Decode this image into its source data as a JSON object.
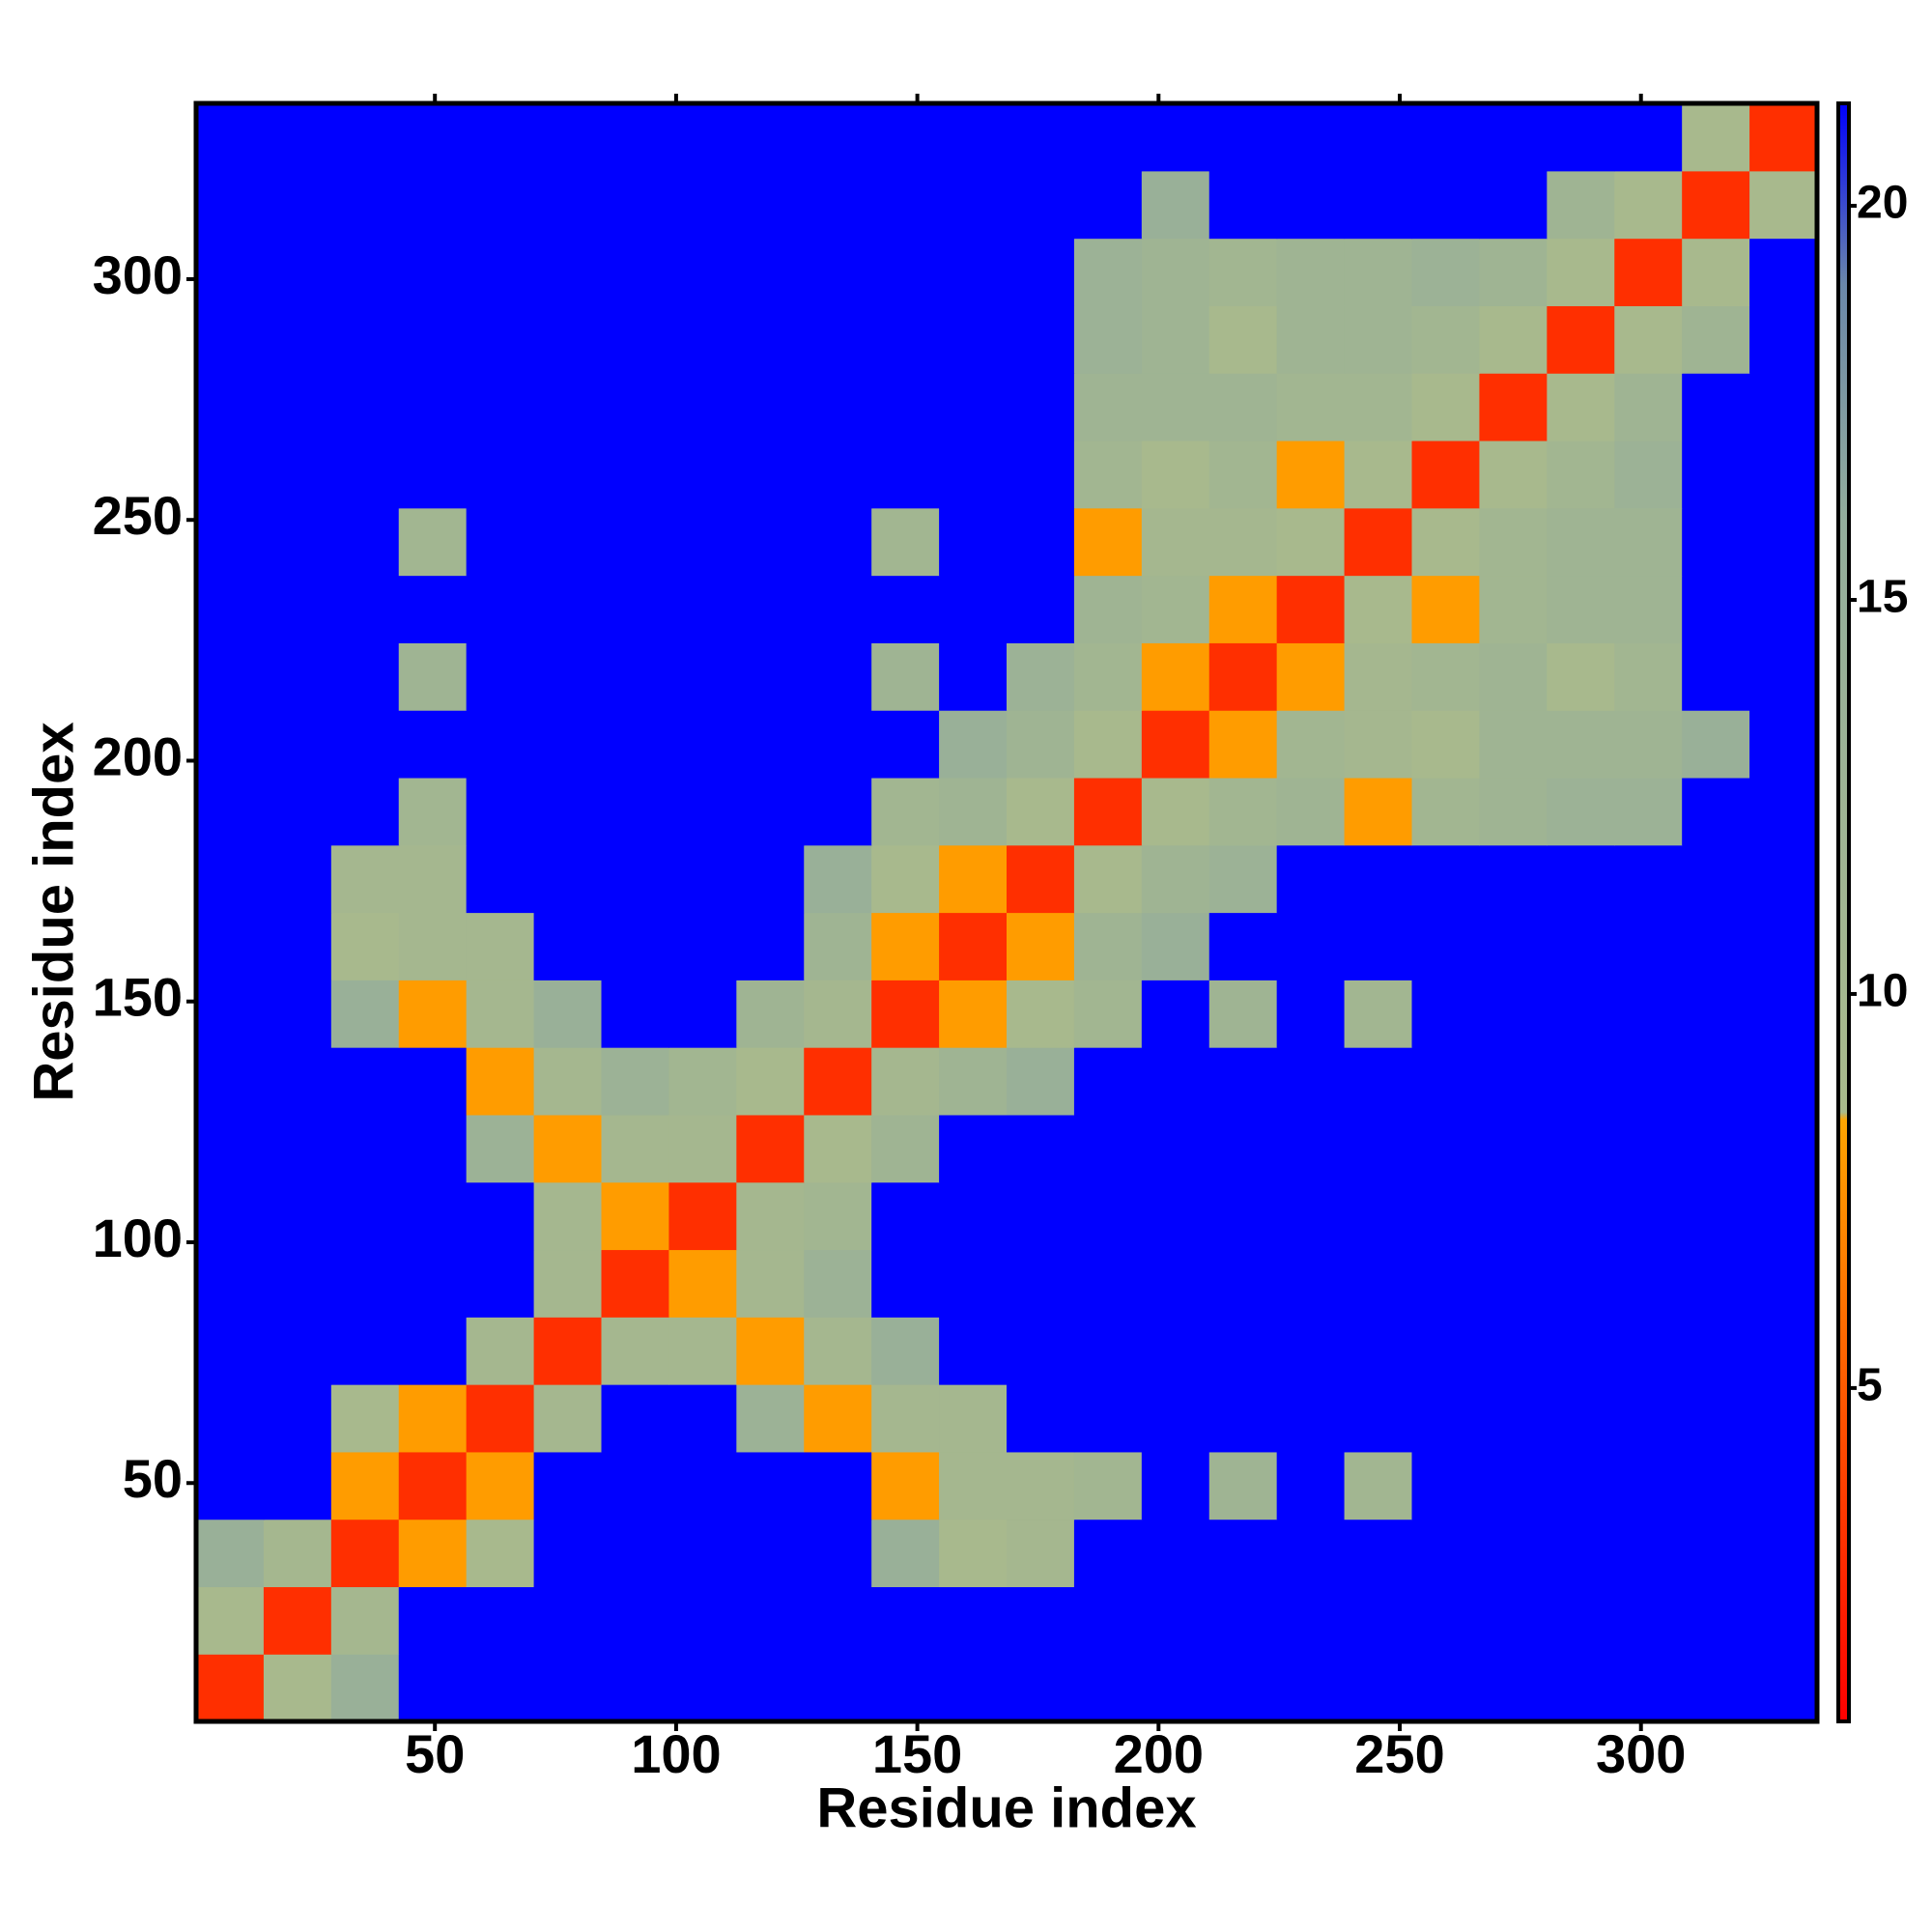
{
  "chart_data": {
    "type": "heatmap",
    "x_label": "Residue index",
    "y_label": "Residue index",
    "xlim": [
      0.5,
      336.5
    ],
    "ylim": [
      0.5,
      336.5
    ],
    "xticks": [
      50,
      100,
      150,
      200,
      250,
      300
    ],
    "yticks": [
      50,
      100,
      150,
      200,
      250,
      300
    ],
    "colorbar_lim": [
      0.77,
      21.3
    ],
    "colorbar_ticks": [
      5,
      10,
      15,
      20
    ],
    "colorscale": [
      {
        "value": 0.77,
        "color": "#ff0000"
      },
      {
        "value": 5,
        "color": "#ff5a00"
      },
      {
        "value": 8.4,
        "color": "#ffa500"
      },
      {
        "value": 8.5,
        "color": "#a9ba8c"
      },
      {
        "value": 16,
        "color": "#93ad9c"
      },
      {
        "value": 19,
        "color": "#6a87a9"
      },
      {
        "value": 21.3,
        "color": "#0000ff"
      }
    ],
    "z": [
      [
        3,
        9,
        14,
        21.3,
        21.3,
        21.3,
        21.3,
        21.3,
        21.3,
        21.3,
        21.3,
        21.3,
        21.3,
        21.3,
        21.3,
        21.3,
        21.3,
        21.3,
        21.3,
        21.3,
        21.3,
        21.3,
        21.3,
        21.3
      ],
      [
        9,
        3,
        10,
        21.3,
        21.3,
        21.3,
        21.3,
        21.3,
        21.3,
        21.3,
        21.3,
        21.3,
        21.3,
        21.3,
        21.3,
        21.3,
        21.3,
        21.3,
        21.3,
        21.3,
        21.3,
        21.3,
        21.3,
        21.3
      ],
      [
        14,
        10,
        3,
        8,
        9,
        21.3,
        21.3,
        21.3,
        21.3,
        21.3,
        14,
        9,
        10,
        21.3,
        21.3,
        21.3,
        21.3,
        21.3,
        21.3,
        21.3,
        21.3,
        21.3,
        21.3,
        21.3
      ],
      [
        21.3,
        21.3,
        8,
        3,
        8,
        21.3,
        21.3,
        21.3,
        21.3,
        21.3,
        8,
        10,
        10,
        11,
        21.3,
        12,
        21.3,
        11,
        21.3,
        21.3,
        21.3,
        21.3,
        21.3,
        21.3
      ],
      [
        21.3,
        21.3,
        9,
        8,
        3,
        10,
        21.3,
        21.3,
        13,
        8,
        10,
        10,
        21.3,
        21.3,
        21.3,
        21.3,
        21.3,
        21.3,
        21.3,
        21.3,
        21.3,
        21.3,
        21.3,
        21.3
      ],
      [
        21.3,
        21.3,
        21.3,
        21.3,
        10,
        3,
        10,
        10,
        8,
        10,
        14,
        21.3,
        21.3,
        21.3,
        21.3,
        21.3,
        21.3,
        21.3,
        21.3,
        21.3,
        21.3,
        21.3,
        21.3,
        21.3
      ],
      [
        21.3,
        21.3,
        21.3,
        21.3,
        21.3,
        10,
        3,
        8,
        10,
        13,
        21.3,
        21.3,
        21.3,
        21.3,
        21.3,
        21.3,
        21.3,
        21.3,
        21.3,
        21.3,
        21.3,
        21.3,
        21.3,
        21.3
      ],
      [
        21.3,
        21.3,
        21.3,
        21.3,
        21.3,
        10,
        8,
        3,
        10,
        11,
        21.3,
        21.3,
        21.3,
        21.3,
        21.3,
        21.3,
        21.3,
        21.3,
        21.3,
        21.3,
        21.3,
        21.3,
        21.3,
        21.3
      ],
      [
        21.3,
        21.3,
        21.3,
        21.3,
        13,
        8,
        10,
        10,
        3,
        9,
        12,
        21.3,
        21.3,
        21.3,
        21.3,
        21.3,
        21.3,
        21.3,
        21.3,
        21.3,
        21.3,
        21.3,
        21.3,
        21.3
      ],
      [
        21.3,
        21.3,
        21.3,
        21.3,
        8,
        10,
        13,
        11,
        9,
        3,
        10,
        12,
        14,
        21.3,
        21.3,
        21.3,
        21.3,
        21.3,
        21.3,
        21.3,
        21.3,
        21.3,
        21.3,
        21.3
      ],
      [
        21.3,
        21.3,
        14,
        8,
        10,
        14,
        21.3,
        21.3,
        12,
        10,
        3,
        8,
        9,
        11,
        21.3,
        12,
        21.3,
        11,
        21.3,
        21.3,
        21.3,
        21.3,
        21.3,
        21.3
      ],
      [
        21.3,
        21.3,
        9,
        10,
        10,
        21.3,
        21.3,
        21.3,
        21.3,
        12,
        8,
        3,
        8,
        12,
        14,
        21.3,
        21.3,
        21.3,
        21.3,
        21.3,
        21.3,
        21.3,
        21.3,
        21.3
      ],
      [
        21.3,
        21.3,
        10,
        10,
        21.3,
        21.3,
        21.3,
        21.3,
        21.3,
        14,
        9,
        8,
        3,
        9,
        12,
        13,
        21.3,
        21.3,
        21.3,
        21.3,
        21.3,
        21.3,
        21.3,
        21.3
      ],
      [
        21.3,
        21.3,
        21.3,
        11,
        21.3,
        21.3,
        21.3,
        21.3,
        21.3,
        21.3,
        11,
        12,
        9,
        3,
        9,
        11,
        12,
        8,
        11,
        12,
        13,
        13,
        21.3,
        21.3
      ],
      [
        21.3,
        21.3,
        21.3,
        21.3,
        21.3,
        21.3,
        21.3,
        21.3,
        21.3,
        21.3,
        21.3,
        14,
        12,
        9,
        3,
        8,
        11,
        10,
        9,
        12,
        12,
        12,
        14,
        21.3
      ],
      [
        21.3,
        21.3,
        21.3,
        12,
        21.3,
        21.3,
        21.3,
        21.3,
        21.3,
        21.3,
        12,
        21.3,
        13,
        11,
        8,
        3,
        8,
        10,
        11,
        12,
        9,
        11,
        21.3,
        21.3
      ],
      [
        21.3,
        21.3,
        21.3,
        21.3,
        21.3,
        21.3,
        21.3,
        21.3,
        21.3,
        21.3,
        21.3,
        21.3,
        21.3,
        12,
        11,
        8,
        3,
        9,
        8,
        11,
        12,
        12,
        21.3,
        21.3
      ],
      [
        21.3,
        21.3,
        21.3,
        11,
        21.3,
        21.3,
        21.3,
        21.3,
        21.3,
        21.3,
        11,
        21.3,
        21.3,
        8,
        10,
        10,
        9,
        3,
        9,
        11,
        12,
        12,
        21.3,
        21.3
      ],
      [
        21.3,
        21.3,
        21.3,
        21.3,
        21.3,
        21.3,
        21.3,
        21.3,
        21.3,
        21.3,
        21.3,
        21.3,
        21.3,
        11,
        9,
        11,
        8,
        9,
        3,
        9,
        11,
        13,
        21.3,
        21.3
      ],
      [
        21.3,
        21.3,
        21.3,
        21.3,
        21.3,
        21.3,
        21.3,
        21.3,
        21.3,
        21.3,
        21.3,
        21.3,
        21.3,
        12,
        12,
        12,
        11,
        11,
        9,
        3,
        9,
        12,
        21.3,
        21.3
      ],
      [
        21.3,
        21.3,
        21.3,
        21.3,
        21.3,
        21.3,
        21.3,
        21.3,
        21.3,
        21.3,
        21.3,
        21.3,
        21.3,
        13,
        12,
        9,
        12,
        12,
        11,
        9,
        3,
        9,
        12,
        21.3
      ],
      [
        21.3,
        21.3,
        21.3,
        21.3,
        21.3,
        21.3,
        21.3,
        21.3,
        21.3,
        21.3,
        21.3,
        21.3,
        21.3,
        13,
        12,
        11,
        12,
        12,
        13,
        12,
        9,
        3,
        9,
        21.3
      ],
      [
        21.3,
        21.3,
        21.3,
        21.3,
        21.3,
        21.3,
        21.3,
        21.3,
        21.3,
        21.3,
        21.3,
        21.3,
        21.3,
        21.3,
        14,
        21.3,
        21.3,
        21.3,
        21.3,
        21.3,
        12,
        9,
        3,
        9
      ],
      [
        21.3,
        21.3,
        21.3,
        21.3,
        21.3,
        21.3,
        21.3,
        21.3,
        21.3,
        21.3,
        21.3,
        21.3,
        21.3,
        21.3,
        21.3,
        21.3,
        21.3,
        21.3,
        21.3,
        21.3,
        21.3,
        21.3,
        9,
        3
      ]
    ]
  }
}
